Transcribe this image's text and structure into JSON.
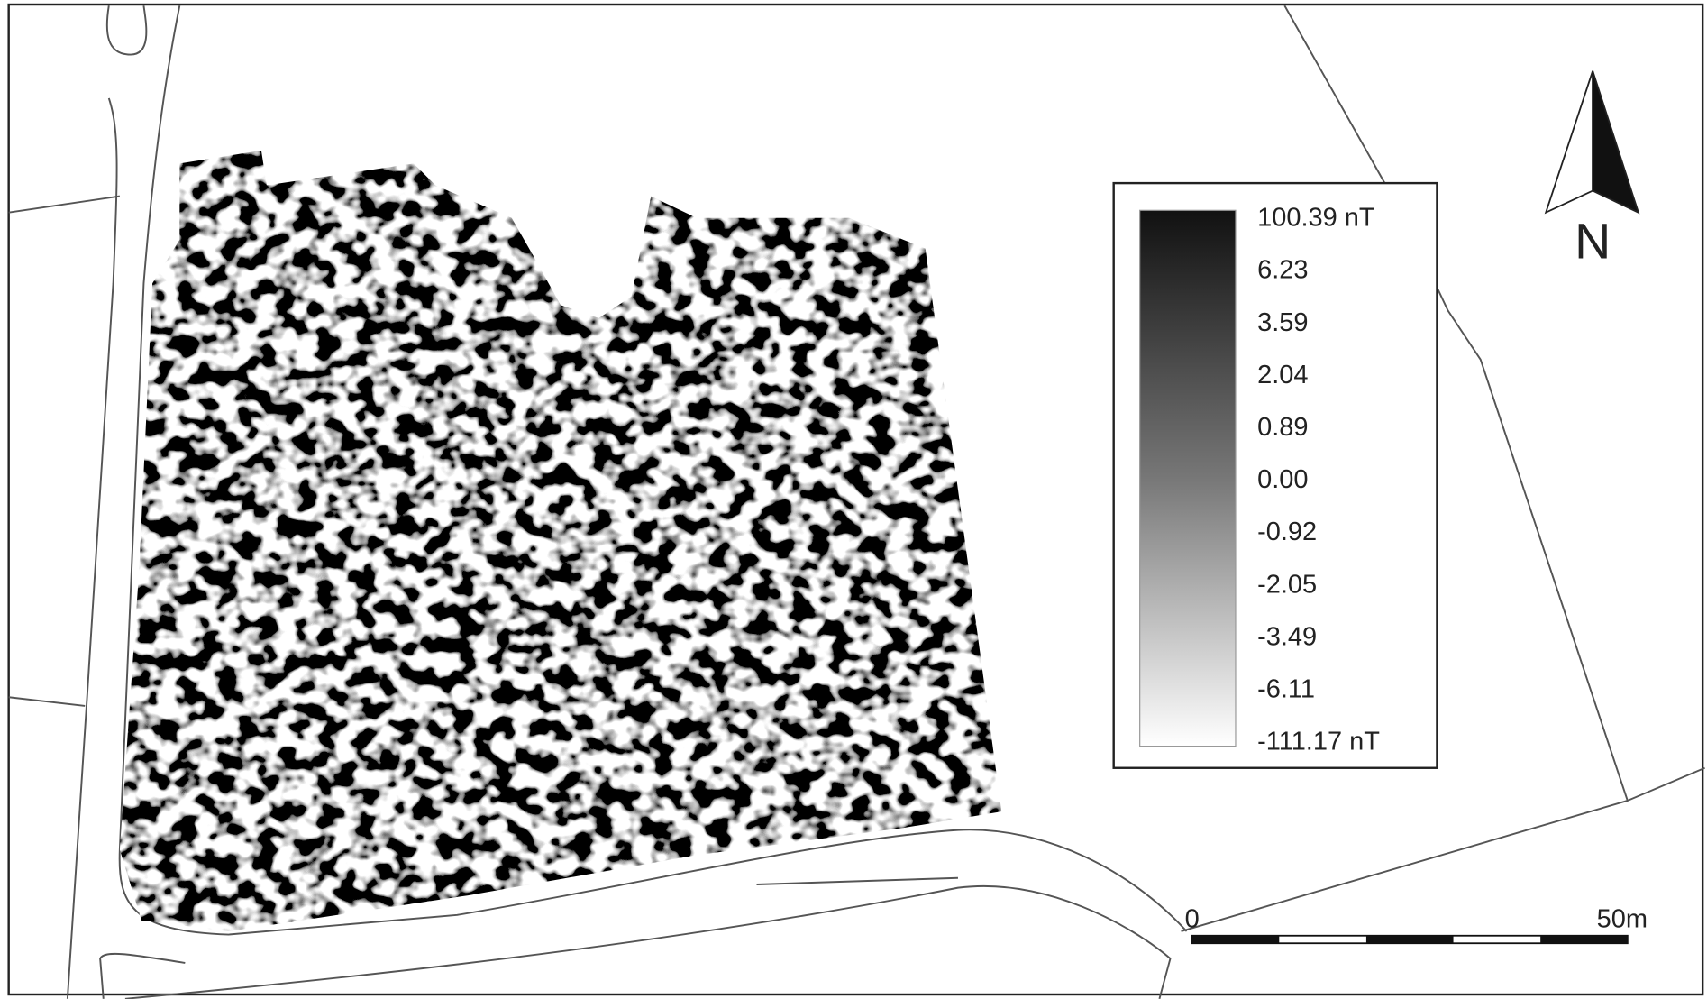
{
  "legend": {
    "labels": [
      "100.39 nT",
      "6.23",
      "3.59",
      "2.04",
      "0.89",
      "0.00",
      "-0.92",
      "-2.05",
      "-3.49",
      "-6.11",
      "-111.17 nT"
    ]
  },
  "north_arrow": {
    "label": "N"
  },
  "scale_bar": {
    "start_label": "0",
    "end_label": "50m"
  }
}
